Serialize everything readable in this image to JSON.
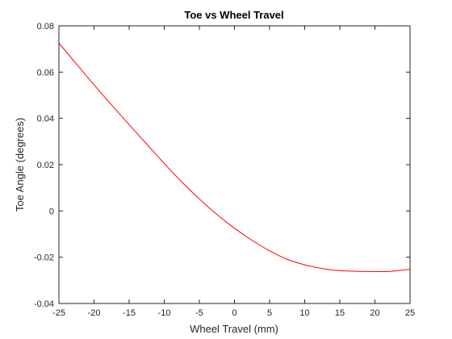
{
  "chart_data": {
    "type": "line",
    "title": "Toe vs Wheel Travel",
    "xlabel": "Wheel Travel (mm)",
    "ylabel": "Toe Angle (degrees)",
    "xlim": [
      -25,
      25
    ],
    "ylim": [
      -0.04,
      0.08
    ],
    "xticks": [
      -25,
      -20,
      -15,
      -10,
      -5,
      0,
      5,
      10,
      15,
      20,
      25
    ],
    "yticks": [
      -0.04,
      -0.02,
      0,
      0.02,
      0.04,
      0.06,
      0.08
    ],
    "xtick_labels": [
      "-25",
      "-20",
      "-15",
      "-10",
      "-5",
      "0",
      "5",
      "10",
      "15",
      "20",
      "25"
    ],
    "ytick_labels": [
      "-0.04",
      "-0.02",
      "0",
      "0.02",
      "0.04",
      "0.06",
      "0.08"
    ],
    "grid": false,
    "line_color": "#ff0000",
    "series": [
      {
        "x": [
          -25,
          -22.5,
          -20,
          -17.5,
          -15,
          -12.5,
          -10,
          -7.5,
          -5,
          -2.5,
          0,
          2.5,
          5,
          7.5,
          10,
          12.5,
          15,
          17.5,
          20,
          21.5,
          23,
          25
        ],
        "values": [
          0.0725,
          0.0635,
          0.0545,
          0.0458,
          0.0373,
          0.0289,
          0.0205,
          0.0125,
          0.0052,
          -0.0015,
          -0.0075,
          -0.0127,
          -0.0172,
          -0.0209,
          -0.0233,
          -0.0249,
          -0.0258,
          -0.0261,
          -0.0262,
          -0.0262,
          -0.0259,
          -0.0252
        ]
      }
    ]
  }
}
